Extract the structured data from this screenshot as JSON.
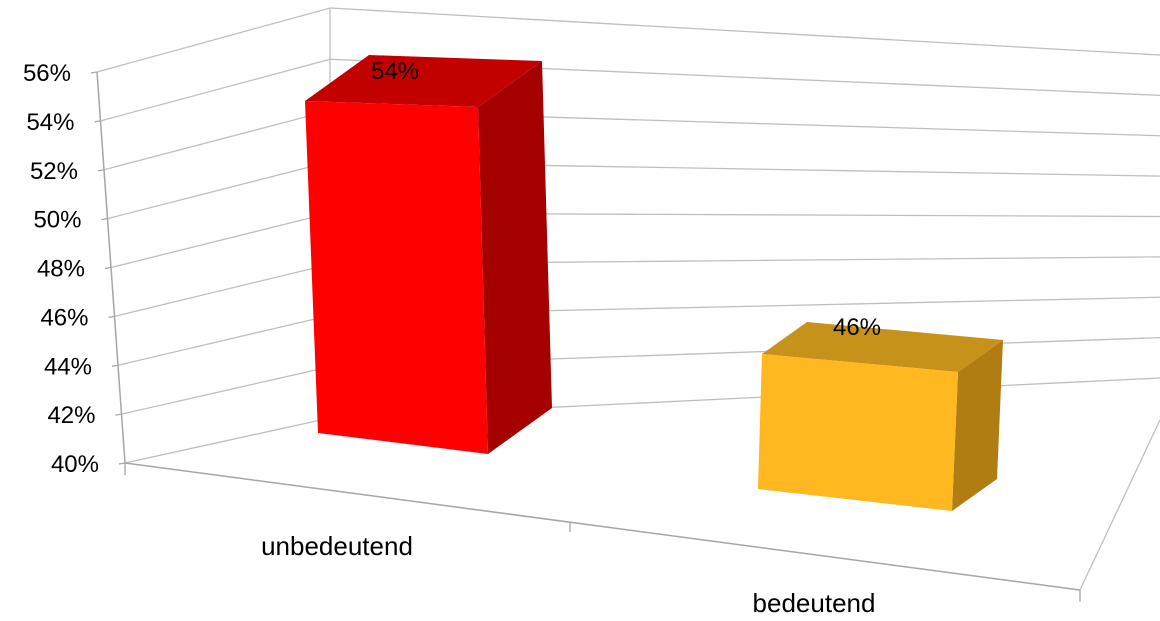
{
  "chart_data": {
    "type": "bar",
    "categories": [
      "unbedeutend",
      "bedeutend"
    ],
    "values": [
      54,
      46
    ],
    "value_labels": [
      "54%",
      "46%"
    ],
    "title": "",
    "xlabel": "",
    "ylabel": "",
    "ylim": [
      40,
      56
    ],
    "y_ticks": [
      "40%",
      "42%",
      "44%",
      "46%",
      "48%",
      "50%",
      "52%",
      "54%",
      "56%"
    ],
    "grid": true,
    "legend": "none",
    "three_d": true,
    "colors": [
      {
        "front": "#ff0000",
        "side": "#a40000",
        "top": "#c30000"
      },
      {
        "front": "#ffb81f",
        "side": "#b07d13",
        "top": "#c7921a"
      }
    ],
    "gridline_color": "#bfbfbf",
    "axis_color": "#a6a6a6",
    "text_color": "#000000"
  }
}
